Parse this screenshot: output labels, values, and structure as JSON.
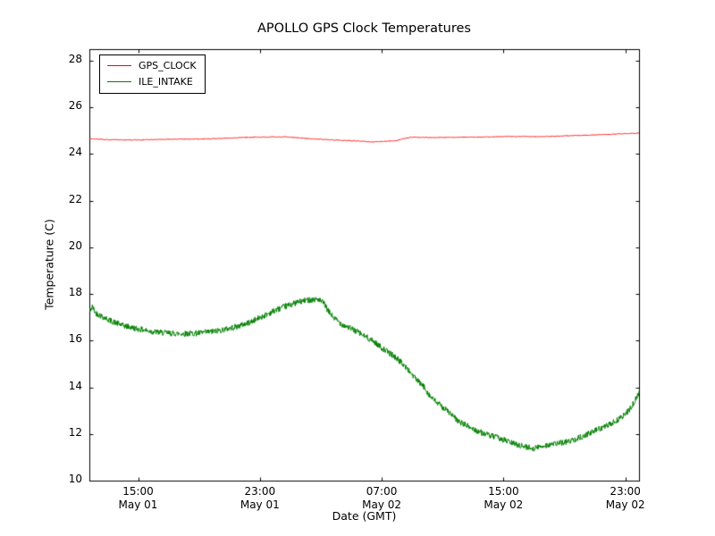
{
  "chart_data": {
    "type": "line",
    "title": "APOLLO GPS Clock Temperatures",
    "xlabel": "Date (GMT)",
    "ylabel": "Temperature (C)",
    "ylim": [
      10,
      28.5
    ],
    "xlim_hours": [
      11.8,
      47.9
    ],
    "yticks": [
      10,
      12,
      14,
      16,
      18,
      20,
      22,
      24,
      26,
      28
    ],
    "xticks": [
      {
        "hour": 15,
        "time": "15:00",
        "date": "May 01"
      },
      {
        "hour": 23,
        "time": "23:00",
        "date": "May 01"
      },
      {
        "hour": 31,
        "time": "07:00",
        "date": "May 02"
      },
      {
        "hour": 39,
        "time": "15:00",
        "date": "May 02"
      },
      {
        "hour": 47,
        "time": "23:00",
        "date": "May 02"
      }
    ],
    "grid": false,
    "legend_position": "upper left",
    "axis_color": "#000000",
    "series": [
      {
        "name": "GPS_CLOCK",
        "color": "#ff0000",
        "noise": 0.016,
        "seed": 7,
        "points": [
          [
            11.8,
            24.66
          ],
          [
            13.0,
            24.62
          ],
          [
            14.5,
            24.6
          ],
          [
            16.0,
            24.62
          ],
          [
            18.0,
            24.64
          ],
          [
            20.0,
            24.66
          ],
          [
            21.5,
            24.7
          ],
          [
            23.0,
            24.73
          ],
          [
            24.5,
            24.74
          ],
          [
            25.5,
            24.7
          ],
          [
            26.5,
            24.65
          ],
          [
            28.0,
            24.6
          ],
          [
            29.5,
            24.56
          ],
          [
            30.5,
            24.52
          ],
          [
            31.3,
            24.55
          ],
          [
            32.0,
            24.58
          ],
          [
            32.5,
            24.68
          ],
          [
            33.0,
            24.72
          ],
          [
            34.5,
            24.71
          ],
          [
            36.0,
            24.72
          ],
          [
            38.0,
            24.74
          ],
          [
            40.0,
            24.76
          ],
          [
            41.5,
            24.75
          ],
          [
            43.0,
            24.78
          ],
          [
            44.5,
            24.81
          ],
          [
            46.0,
            24.85
          ],
          [
            47.9,
            24.9
          ]
        ]
      },
      {
        "name": "ILE_INTAKE",
        "color": "#008000",
        "noise": 0.13,
        "seed": 42,
        "points": [
          [
            11.8,
            17.25
          ],
          [
            12.0,
            17.45
          ],
          [
            12.2,
            17.2
          ],
          [
            12.6,
            17.05
          ],
          [
            13.2,
            16.85
          ],
          [
            14.0,
            16.65
          ],
          [
            15.0,
            16.5
          ],
          [
            16.0,
            16.38
          ],
          [
            17.0,
            16.32
          ],
          [
            18.0,
            16.3
          ],
          [
            19.0,
            16.32
          ],
          [
            20.0,
            16.4
          ],
          [
            20.8,
            16.5
          ],
          [
            21.6,
            16.62
          ],
          [
            22.4,
            16.8
          ],
          [
            23.2,
            17.05
          ],
          [
            24.0,
            17.3
          ],
          [
            24.8,
            17.5
          ],
          [
            25.5,
            17.65
          ],
          [
            26.2,
            17.75
          ],
          [
            26.8,
            17.78
          ],
          [
            27.2,
            17.6
          ],
          [
            27.5,
            17.25
          ],
          [
            27.9,
            16.95
          ],
          [
            28.4,
            16.7
          ],
          [
            29.2,
            16.45
          ],
          [
            30.0,
            16.15
          ],
          [
            30.6,
            15.9
          ],
          [
            31.2,
            15.6
          ],
          [
            31.8,
            15.35
          ],
          [
            32.4,
            15.0
          ],
          [
            33.0,
            14.55
          ],
          [
            33.4,
            14.25
          ],
          [
            33.8,
            14.0
          ],
          [
            34.2,
            13.6
          ],
          [
            34.6,
            13.35
          ],
          [
            35.0,
            13.15
          ],
          [
            35.4,
            12.95
          ],
          [
            36.0,
            12.55
          ],
          [
            36.6,
            12.35
          ],
          [
            37.2,
            12.15
          ],
          [
            38.0,
            11.95
          ],
          [
            38.8,
            11.8
          ],
          [
            39.6,
            11.6
          ],
          [
            40.4,
            11.45
          ],
          [
            41.0,
            11.38
          ],
          [
            41.6,
            11.5
          ],
          [
            42.2,
            11.55
          ],
          [
            42.8,
            11.62
          ],
          [
            43.4,
            11.7
          ],
          [
            44.0,
            11.85
          ],
          [
            44.6,
            12.0
          ],
          [
            45.2,
            12.2
          ],
          [
            45.8,
            12.35
          ],
          [
            46.4,
            12.55
          ],
          [
            47.0,
            12.85
          ],
          [
            47.4,
            13.15
          ],
          [
            47.9,
            13.75
          ]
        ]
      }
    ]
  }
}
